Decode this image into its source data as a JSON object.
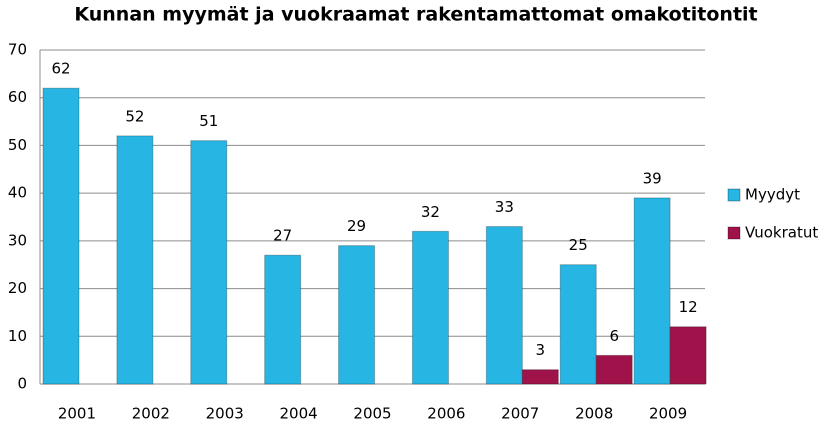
{
  "chart_data": {
    "type": "bar",
    "title": "Kunnan myymät ja vuokraamat rakentamattomat omakotitontit",
    "categories": [
      "2001",
      "2002",
      "2003",
      "2004",
      "2005",
      "2006",
      "2007",
      "2008",
      "2009"
    ],
    "series": [
      {
        "name": "Myydyt",
        "color": "#27b6e4",
        "values": [
          62,
          52,
          51,
          27,
          29,
          32,
          33,
          25,
          39
        ]
      },
      {
        "name": "Vuokratut",
        "color": "#a0124a",
        "values": [
          null,
          null,
          null,
          null,
          null,
          null,
          3,
          6,
          12
        ]
      }
    ],
    "ylim": [
      0,
      70
    ],
    "yticks": [
      0,
      10,
      20,
      30,
      40,
      50,
      60,
      70
    ],
    "grid": true,
    "legend": "right"
  }
}
